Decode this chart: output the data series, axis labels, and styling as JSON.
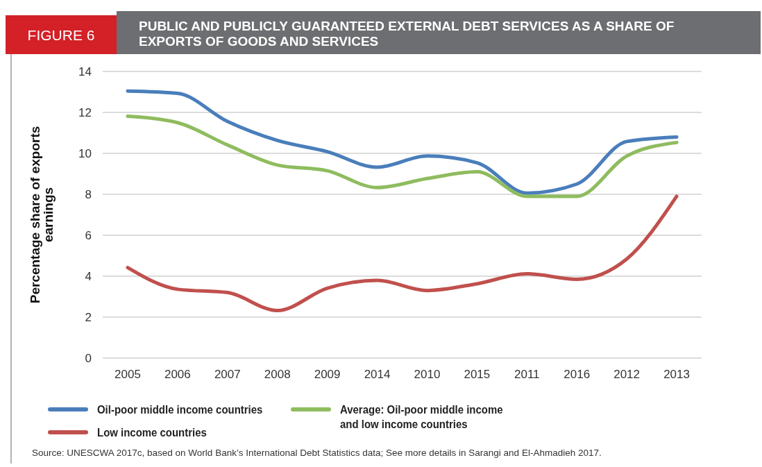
{
  "chart_data": {
    "type": "line",
    "title": "PUBLIC AND PUBLICLY GUARANTEED EXTERNAL DEBT SERVICES AS A SHARE OF EXPORTS OF GOODS AND SERVICES",
    "ylabel": "Percentage share of exports earnings",
    "annotations": [
      "FIGURE 6",
      "Source: UNESCWA 2017c, based on World Bank’s International Debt Statistics data; See more details in Sarangi and El-Ahmadieh 2017."
    ],
    "categories": [
      "2005",
      "2006",
      "2007",
      "2008",
      "2009",
      "2014",
      "2010",
      "2015",
      "2011",
      "2016",
      "2012",
      "2013"
    ],
    "series": [
      {
        "name": "Oil-poor middle income countries",
        "color": "#4a7ebb",
        "values": [
          13.04,
          12.93,
          11.56,
          10.63,
          10.08,
          9.32,
          9.87,
          9.54,
          8.06,
          8.5,
          10.58,
          10.8
        ]
      },
      {
        "name": "Average: Oil-poor middle income and low income countries",
        "color": "#8fbc5f",
        "values": [
          11.81,
          11.5,
          10.41,
          9.43,
          9.15,
          8.33,
          8.77,
          9.1,
          7.9,
          7.9,
          9.87,
          10.53
        ]
      },
      {
        "name": "Low income countries",
        "color": "#c0504d",
        "values": [
          4.42,
          3.36,
          3.2,
          2.32,
          3.41,
          3.8,
          3.3,
          3.63,
          4.12,
          3.85,
          4.84,
          7.9
        ]
      }
    ],
    "ylim": [
      0,
      14
    ],
    "yticks": [
      0,
      2,
      4,
      6,
      8,
      10,
      12,
      14
    ],
    "grid": "y",
    "legend": "bottom",
    "marker": "none",
    "line_style": "solid"
  }
}
